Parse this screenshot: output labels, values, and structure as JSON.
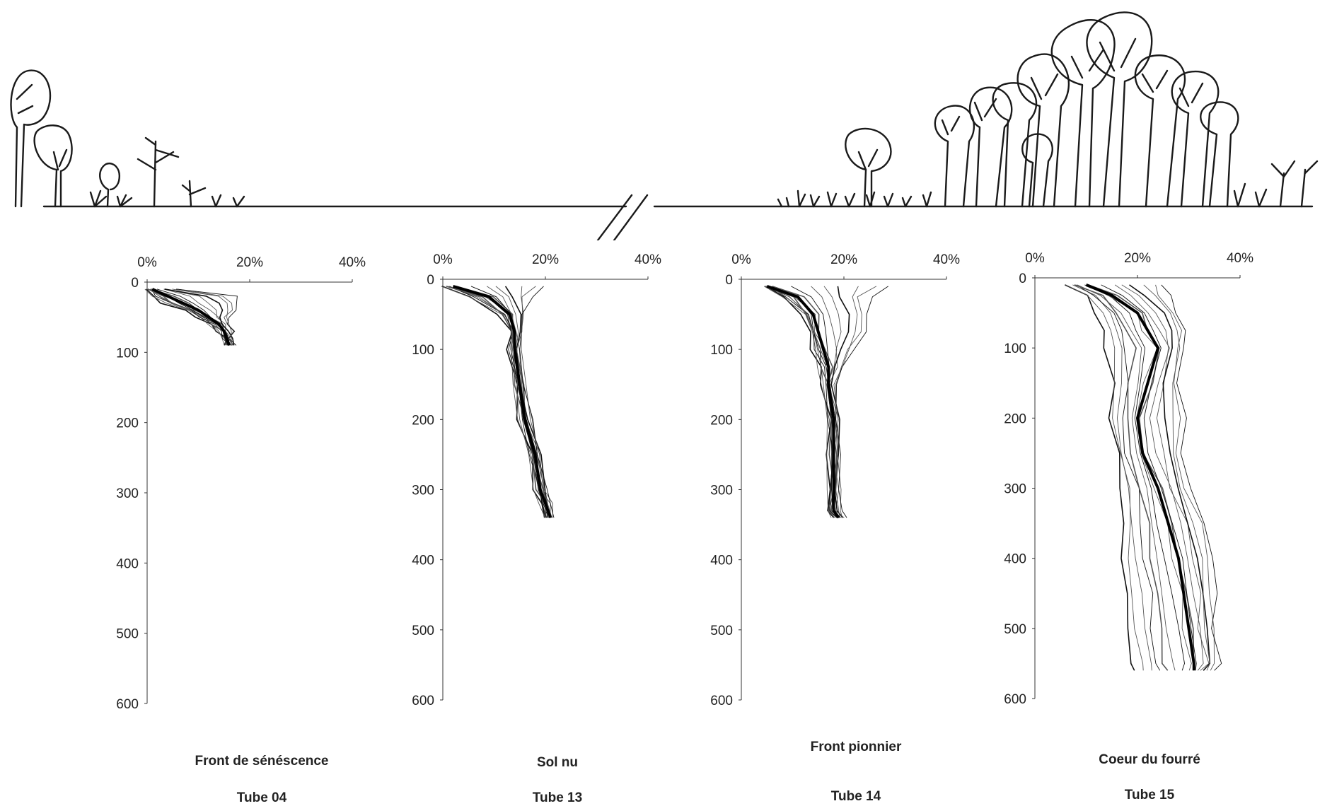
{
  "chart_data": [
    {
      "type": "line",
      "title": "Front de sénéscence",
      "subtitle": "Tube 04",
      "x_ticks": [
        "0%",
        "20%",
        "40%"
      ],
      "y_ticks": [
        "0",
        "100",
        "200",
        "300",
        "400",
        "500",
        "600"
      ],
      "xlim": [
        0,
        40
      ],
      "ylim": [
        0,
        600
      ],
      "y_inverted": true,
      "profile": {
        "depth": [
          10,
          20,
          30,
          40,
          50,
          60,
          70,
          80,
          90
        ],
        "center": [
          1,
          4,
          7,
          10,
          12,
          14,
          15,
          15.5,
          16
        ],
        "min": [
          0,
          1,
          3,
          7,
          10,
          12,
          14,
          15,
          15.5
        ],
        "max": [
          6,
          17,
          18,
          17,
          16,
          16,
          16.5,
          16.5,
          17
        ]
      }
    },
    {
      "type": "line",
      "title": "Sol nu",
      "subtitle": "Tube 13",
      "x_ticks": [
        "0%",
        "20%",
        "40%"
      ],
      "y_ticks": [
        "0",
        "100",
        "200",
        "300",
        "400",
        "500",
        "600"
      ],
      "xlim": [
        0,
        40
      ],
      "ylim": [
        0,
        600
      ],
      "y_inverted": true,
      "profile": {
        "depth": [
          10,
          25,
          50,
          75,
          100,
          150,
          200,
          250,
          300,
          320,
          340
        ],
        "center": [
          2,
          9,
          13,
          14,
          14,
          15,
          16,
          18,
          19,
          20,
          21
        ],
        "min": [
          0,
          5,
          11,
          13,
          13,
          14,
          15,
          17,
          18,
          19,
          20
        ],
        "max": [
          20,
          17,
          16,
          15,
          15,
          16,
          17,
          19,
          20,
          21,
          22
        ]
      }
    },
    {
      "type": "line",
      "title": "Front pionnier",
      "subtitle": "Tube 14",
      "x_ticks": [
        "0%",
        "20%",
        "40%"
      ],
      "y_ticks": [
        "0",
        "100",
        "200",
        "300",
        "400",
        "500",
        "600"
      ],
      "xlim": [
        0,
        40
      ],
      "ylim": [
        0,
        600
      ],
      "y_inverted": true,
      "profile": {
        "depth": [
          10,
          25,
          50,
          75,
          100,
          125,
          150,
          200,
          250,
          300,
          330,
          340
        ],
        "center": [
          5,
          11,
          14,
          15,
          16,
          17,
          17,
          18,
          18,
          18,
          18,
          19
        ],
        "min": [
          5,
          8,
          12,
          13,
          14,
          15,
          16,
          17,
          17,
          17,
          17,
          18
        ],
        "max": [
          29,
          25,
          25,
          24,
          22,
          20,
          18,
          19,
          19,
          19,
          20,
          20
        ]
      }
    },
    {
      "type": "line",
      "title": "Coeur du fourré",
      "subtitle": "Tube 15",
      "x_ticks": [
        "0%",
        "20%",
        "40%"
      ],
      "y_ticks": [
        "0",
        "100",
        "200",
        "300",
        "400",
        "500",
        "600"
      ],
      "xlim": [
        0,
        40
      ],
      "ylim": [
        0,
        600
      ],
      "y_inverted": true,
      "profile": {
        "depth": [
          10,
          25,
          50,
          75,
          100,
          150,
          200,
          250,
          300,
          350,
          400,
          450,
          500,
          550,
          560
        ],
        "center": [
          10,
          15,
          20,
          22,
          24,
          22,
          20,
          21,
          24,
          26,
          28,
          29,
          30,
          31,
          31
        ],
        "min": [
          6,
          10,
          12,
          13,
          14,
          15,
          15,
          16,
          17,
          17,
          17,
          18,
          18,
          19,
          19
        ],
        "max": [
          25,
          26,
          28,
          29,
          29,
          28,
          29,
          29,
          30,
          33,
          35,
          35,
          35,
          36,
          35
        ]
      }
    }
  ]
}
